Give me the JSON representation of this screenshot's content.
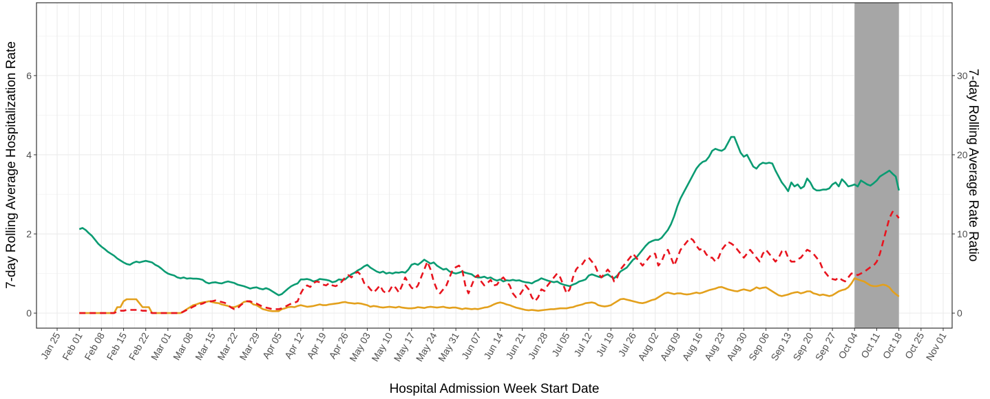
{
  "chart_data": {
    "type": "line",
    "x_label": "Hospital Admission Week Start Date",
    "y_label": "7-day Rolling Average Hospitalization Rate",
    "y2_label": "7-day Rolling Average Rate Ratio",
    "categories": [
      "Jan 25",
      null,
      null,
      null,
      null,
      null,
      null,
      "Feb 01",
      null,
      null,
      null,
      null,
      null,
      null,
      "Feb 08",
      null,
      null,
      null,
      null,
      null,
      null,
      "Feb 15",
      null,
      null,
      null,
      null,
      null,
      null,
      "Feb 22",
      null,
      null,
      null,
      null,
      null,
      null,
      "Mar 01",
      null,
      null,
      null,
      null,
      null,
      null,
      "Mar 08",
      null,
      null,
      null,
      null,
      null,
      null,
      "Mar 15",
      null,
      null,
      null,
      null,
      null,
      null,
      "Mar 22",
      null,
      null,
      null,
      null,
      null,
      null,
      "Mar 29",
      null,
      null,
      null,
      null,
      null,
      null,
      "Apr 05",
      null,
      null,
      null,
      null,
      null,
      null,
      "Apr 12",
      null,
      null,
      null,
      null,
      null,
      null,
      "Apr 19",
      null,
      null,
      null,
      null,
      null,
      null,
      "Apr 26",
      null,
      null,
      null,
      null,
      null,
      null,
      "May 03",
      null,
      null,
      null,
      null,
      null,
      null,
      "May 10",
      null,
      null,
      null,
      null,
      null,
      null,
      "May 17",
      null,
      null,
      null,
      null,
      null,
      null,
      "May 24",
      null,
      null,
      null,
      null,
      null,
      null,
      "May 31",
      null,
      null,
      null,
      null,
      null,
      null,
      "Jun 07",
      null,
      null,
      null,
      null,
      null,
      null,
      "Jun 14",
      null,
      null,
      null,
      null,
      null,
      null,
      "Jun 21",
      null,
      null,
      null,
      null,
      null,
      null,
      "Jun 28",
      null,
      null,
      null,
      null,
      null,
      null,
      "Jul 05",
      null,
      null,
      null,
      null,
      null,
      null,
      "Jul 12",
      null,
      null,
      null,
      null,
      null,
      null,
      "Jul 19",
      null,
      null,
      null,
      null,
      null,
      null,
      "Jul 26",
      null,
      null,
      null,
      null,
      null,
      null,
      "Aug 02",
      null,
      null,
      null,
      null,
      null,
      null,
      "Aug 09",
      null,
      null,
      null,
      null,
      null,
      null,
      "Aug 16",
      null,
      null,
      null,
      null,
      null,
      null,
      "Aug 23",
      null,
      null,
      null,
      null,
      null,
      null,
      "Aug 30",
      null,
      null,
      null,
      null,
      null,
      null,
      "Sep 06",
      null,
      null,
      null,
      null,
      null,
      null,
      "Sep 13",
      null,
      null,
      null,
      null,
      null,
      null,
      "Sep 20",
      null,
      null,
      null,
      null,
      null,
      null,
      "Sep 27",
      null,
      null,
      null,
      null,
      null,
      null,
      "Oct 04",
      null,
      null,
      null,
      null,
      null,
      null,
      "Oct 11",
      null,
      null,
      null,
      null,
      null,
      null,
      "Oct 18",
      null,
      null,
      null,
      null,
      null,
      null,
      "Oct 25",
      null,
      null,
      null,
      null,
      null,
      null,
      "Nov 01"
    ],
    "highlight": [
      "Oct 04",
      "Oct 18"
    ],
    "ylim": [
      -0.38,
      7.84
    ],
    "yticks": [
      0,
      2,
      4,
      6
    ],
    "y2lim": [
      -1.9,
      39.2
    ],
    "y2ticks": [
      0,
      10,
      20,
      30
    ],
    "grid": true,
    "series": [
      {
        "color": "#0a9b72",
        "dash": false,
        "values": [
          null,
          null,
          null,
          null,
          null,
          null,
          null,
          2.12,
          2.15,
          2.1,
          2.02,
          1.95,
          1.85,
          1.75,
          1.68,
          1.62,
          1.55,
          1.5,
          1.45,
          1.38,
          1.33,
          1.28,
          1.24,
          1.22,
          1.27,
          1.3,
          1.28,
          1.3,
          1.32,
          1.3,
          1.28,
          1.22,
          1.18,
          1.12,
          1.05,
          1.0,
          0.97,
          0.95,
          0.9,
          0.88,
          0.9,
          0.87,
          0.88,
          0.87,
          0.87,
          0.86,
          0.84,
          0.78,
          0.75,
          0.77,
          0.78,
          0.76,
          0.75,
          0.78,
          0.8,
          0.78,
          0.76,
          0.72,
          0.7,
          0.68,
          0.65,
          0.62,
          0.64,
          0.65,
          0.62,
          0.6,
          0.63,
          0.6,
          0.55,
          0.5,
          0.45,
          0.48,
          0.55,
          0.62,
          0.68,
          0.72,
          0.75,
          0.85,
          0.85,
          0.86,
          0.84,
          0.8,
          0.82,
          0.86,
          0.85,
          0.84,
          0.82,
          0.78,
          0.8,
          0.85,
          0.84,
          0.85,
          0.92,
          0.98,
          1.02,
          1.08,
          1.12,
          1.18,
          1.22,
          1.15,
          1.1,
          1.05,
          1.02,
          1.05,
          1.0,
          1.02,
          1.0,
          1.03,
          1.02,
          1.04,
          1.02,
          1.1,
          1.22,
          1.25,
          1.22,
          1.28,
          1.35,
          1.3,
          1.25,
          1.28,
          1.2,
          1.15,
          1.1,
          1.12,
          1.05,
          1.02,
          1.0,
          1.02,
          1.05,
          1.02,
          1.0,
          0.98,
          0.92,
          0.9,
          0.9,
          0.92,
          0.88,
          0.9,
          0.85,
          0.82,
          0.85,
          0.8,
          0.83,
          0.82,
          0.84,
          0.82,
          0.83,
          0.8,
          0.78,
          0.77,
          0.75,
          0.8,
          0.83,
          0.88,
          0.85,
          0.82,
          0.8,
          0.78,
          0.8,
          0.75,
          0.72,
          0.7,
          0.68,
          0.72,
          0.75,
          0.8,
          0.82,
          0.85,
          0.95,
          0.98,
          0.95,
          0.92,
          0.9,
          0.95,
          0.98,
          0.92,
          0.88,
          0.95,
          1.05,
          1.1,
          1.15,
          1.25,
          1.35,
          1.4,
          1.5,
          1.6,
          1.7,
          1.78,
          1.82,
          1.85,
          1.85,
          1.9,
          2.0,
          2.1,
          2.25,
          2.45,
          2.7,
          2.9,
          3.05,
          3.2,
          3.35,
          3.5,
          3.65,
          3.75,
          3.82,
          3.85,
          3.95,
          4.1,
          4.15,
          4.12,
          4.1,
          4.15,
          4.3,
          4.45,
          4.45,
          4.25,
          4.05,
          3.95,
          4.0,
          3.85,
          3.7,
          3.65,
          3.75,
          3.8,
          3.78,
          3.8,
          3.78,
          3.6,
          3.45,
          3.3,
          3.2,
          3.08,
          3.3,
          3.2,
          3.25,
          3.15,
          3.2,
          3.4,
          3.3,
          3.15,
          3.1,
          3.1,
          3.12,
          3.12,
          3.15,
          3.25,
          3.3,
          3.2,
          3.38,
          3.3,
          3.2,
          3.22,
          3.25,
          3.2,
          3.35,
          3.3,
          3.25,
          3.22,
          3.28,
          3.35,
          3.45,
          3.5,
          3.55,
          3.6,
          3.52,
          3.45,
          3.1,
          null,
          null,
          null,
          null,
          null,
          null,
          null,
          null,
          null,
          null,
          null,
          null,
          null,
          null
        ]
      },
      {
        "color": "#e3a01c",
        "dash": false,
        "values": [
          null,
          null,
          null,
          null,
          null,
          null,
          null,
          0,
          0,
          0,
          0,
          0,
          0,
          0,
          0,
          0,
          0,
          0,
          0,
          0.15,
          0.15,
          0.3,
          0.35,
          0.35,
          0.35,
          0.35,
          0.25,
          0.15,
          0.15,
          0.15,
          0,
          0,
          0,
          0,
          0,
          0,
          0,
          0,
          0,
          0,
          0.05,
          0.1,
          0.15,
          0.2,
          0.22,
          0.25,
          0.27,
          0.28,
          0.3,
          0.28,
          0.26,
          0.25,
          0.22,
          0.2,
          0.18,
          0.15,
          0.15,
          0.18,
          0.22,
          0.28,
          0.3,
          0.28,
          0.22,
          0.2,
          0.15,
          0.1,
          0.08,
          0.06,
          0.05,
          0.05,
          0.05,
          0.1,
          0.12,
          0.15,
          0.16,
          0.15,
          0.18,
          0.2,
          0.18,
          0.16,
          0.17,
          0.18,
          0.2,
          0.22,
          0.2,
          0.2,
          0.22,
          0.23,
          0.24,
          0.25,
          0.27,
          0.28,
          0.26,
          0.25,
          0.24,
          0.25,
          0.24,
          0.22,
          0.2,
          0.16,
          0.18,
          0.17,
          0.15,
          0.14,
          0.15,
          0.16,
          0.15,
          0.14,
          0.16,
          0.14,
          0.13,
          0.12,
          0.12,
          0.13,
          0.15,
          0.14,
          0.13,
          0.15,
          0.16,
          0.15,
          0.14,
          0.15,
          0.16,
          0.14,
          0.13,
          0.14,
          0.14,
          0.12,
          0.1,
          0.12,
          0.11,
          0.1,
          0.11,
          0.1,
          0.12,
          0.14,
          0.15,
          0.18,
          0.22,
          0.25,
          0.27,
          0.25,
          0.22,
          0.2,
          0.17,
          0.14,
          0.12,
          0.1,
          0.08,
          0.07,
          0.08,
          0.07,
          0.06,
          0.07,
          0.08,
          0.09,
          0.1,
          0.1,
          0.11,
          0.12,
          0.12,
          0.12,
          0.14,
          0.15,
          0.18,
          0.2,
          0.22,
          0.25,
          0.26,
          0.27,
          0.25,
          0.2,
          0.18,
          0.17,
          0.18,
          0.2,
          0.25,
          0.3,
          0.35,
          0.36,
          0.34,
          0.32,
          0.3,
          0.28,
          0.26,
          0.25,
          0.27,
          0.3,
          0.33,
          0.35,
          0.4,
          0.45,
          0.5,
          0.52,
          0.5,
          0.48,
          0.5,
          0.5,
          0.48,
          0.47,
          0.48,
          0.5,
          0.52,
          0.5,
          0.52,
          0.55,
          0.58,
          0.6,
          0.62,
          0.65,
          0.66,
          0.63,
          0.6,
          0.58,
          0.56,
          0.55,
          0.58,
          0.6,
          0.58,
          0.56,
          0.6,
          0.65,
          0.62,
          0.64,
          0.65,
          0.6,
          0.55,
          0.5,
          0.45,
          0.43,
          0.45,
          0.47,
          0.5,
          0.52,
          0.53,
          0.5,
          0.52,
          0.55,
          0.55,
          0.5,
          0.48,
          0.45,
          0.47,
          0.45,
          0.43,
          0.45,
          0.5,
          0.55,
          0.58,
          0.6,
          0.65,
          0.75,
          0.88,
          0.85,
          0.82,
          0.8,
          0.75,
          0.7,
          0.68,
          0.68,
          0.7,
          0.72,
          0.7,
          0.65,
          0.55,
          0.48,
          0.42,
          null,
          null,
          null,
          null,
          null,
          null,
          null,
          null,
          null,
          null,
          null,
          null,
          null,
          null
        ]
      },
      {
        "color": "#e8141e",
        "dash": true,
        "axis": "y2",
        "values": [
          null,
          null,
          null,
          null,
          null,
          null,
          null,
          0,
          0,
          0,
          0,
          0,
          0,
          0,
          0,
          0,
          0,
          0,
          0,
          0.2,
          0.3,
          0.3,
          0.4,
          0.4,
          0.4,
          0.4,
          0.4,
          0.3,
          0.3,
          0.2,
          0,
          0,
          0,
          0,
          0,
          0,
          0,
          0,
          0,
          0,
          0.2,
          0.4,
          0.6,
          0.8,
          1,
          1.1,
          1.2,
          1.4,
          1.5,
          1.5,
          1.6,
          1.5,
          1.4,
          1.3,
          1.0,
          0.7,
          0.5,
          0.6,
          1.0,
          1.3,
          1.5,
          1.5,
          1.3,
          1.2,
          1.0,
          0.8,
          0.7,
          0.6,
          0.5,
          0.5,
          0.5,
          0.6,
          0.8,
          1.0,
          1.2,
          1.3,
          1.5,
          2.5,
          3.2,
          3.5,
          3.3,
          3.8,
          4.0,
          3.9,
          3.6,
          3.5,
          3.8,
          3.5,
          3.4,
          3.6,
          4.0,
          4.5,
          4.8,
          4.5,
          5.0,
          5.2,
          4.8,
          3.8,
          3.5,
          3.0,
          2.6,
          3.0,
          3.5,
          2.8,
          2.5,
          2.8,
          3.5,
          3.2,
          2.6,
          3.5,
          4.5,
          3.8,
          3.2,
          3.0,
          3.5,
          4.5,
          5.5,
          6.5,
          5.5,
          4.0,
          3.0,
          2.5,
          3.0,
          3.5,
          4.5,
          5.5,
          5.8,
          6.0,
          5.5,
          3.5,
          2.5,
          3.5,
          4.5,
          4.8,
          4.0,
          3.5,
          3.8,
          4.2,
          3.5,
          3.6,
          4.2,
          4.5,
          4.0,
          3.5,
          2.5,
          2.0,
          2.2,
          2.8,
          3.5,
          3.0,
          2.0,
          1.5,
          2.0,
          3.0,
          2.8,
          3.5,
          4.0,
          4.5,
          5.0,
          4.5,
          3.5,
          2.5,
          3.0,
          4.5,
          5.5,
          6.0,
          6.2,
          6.8,
          7.0,
          6.5,
          6.0,
          5.0,
          4.5,
          5.0,
          5.5,
          5.0,
          4.0,
          4.5,
          5.5,
          6.0,
          6.5,
          7.0,
          7.5,
          7.0,
          6.5,
          6.0,
          6.5,
          7.0,
          7.5,
          7.5,
          6.0,
          6.5,
          7.5,
          8.0,
          7.0,
          6.0,
          7.0,
          8.0,
          8.5,
          9.0,
          9.5,
          9.2,
          8.5,
          8.0,
          8.2,
          7.5,
          7.0,
          7.0,
          6.5,
          7.0,
          8.0,
          8.5,
          9.0,
          8.8,
          8.5,
          8.0,
          7.5,
          7.0,
          7.5,
          8.0,
          7.5,
          7.0,
          6.5,
          7.5,
          8.0,
          7.5,
          7.0,
          6.5,
          7.0,
          7.8,
          8.0,
          7.0,
          6.5,
          6.5,
          6.8,
          7.0,
          7.5,
          8.0,
          7.8,
          7.5,
          7.0,
          6.5,
          5.5,
          5.0,
          4.5,
          4.3,
          4.2,
          4.5,
          4.2,
          4.0,
          4.5,
          5.0,
          5.0,
          4.8,
          5.0,
          5.2,
          5.5,
          5.8,
          6.0,
          6.5,
          7.5,
          9.0,
          10.5,
          12.0,
          12.8,
          12.5,
          12.0,
          null,
          null,
          null,
          null,
          null,
          null,
          null,
          null,
          null,
          null,
          null,
          null,
          null,
          null
        ]
      }
    ]
  }
}
